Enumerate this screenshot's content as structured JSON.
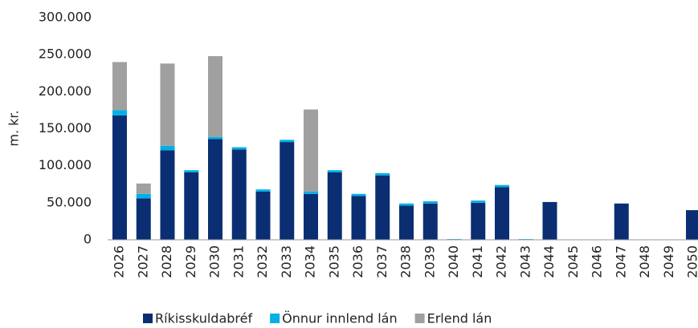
{
  "chart_data": {
    "type": "stacked_bar",
    "y_label": "m. kr.",
    "categories": [
      "2026",
      "2027",
      "2028",
      "2029",
      "2030",
      "2031",
      "2032",
      "2033",
      "2034",
      "2035",
      "2036",
      "2037",
      "2038",
      "2039",
      "2040",
      "2041",
      "2042",
      "2043",
      "2044",
      "2045",
      "2046",
      "2047",
      "2048",
      "2049",
      "2050"
    ],
    "series": [
      {
        "name": "Ríkisskuldabréf",
        "color": "#0b2e73",
        "values": [
          168000,
          56000,
          121000,
          91000,
          136000,
          122000,
          65000,
          132000,
          62000,
          91000,
          59000,
          87000,
          46000,
          49000,
          0,
          50000,
          71000,
          0,
          51000,
          0,
          0,
          49000,
          0,
          0,
          40000
        ]
      },
      {
        "name": "Önnur innlend lán",
        "color": "#00b0e6",
        "values": [
          7000,
          6000,
          6000,
          3000,
          3000,
          3000,
          3000,
          3000,
          3000,
          3000,
          3000,
          3000,
          3000,
          3000,
          1000,
          3000,
          3000,
          1000,
          0,
          0,
          0,
          0,
          0,
          0,
          0
        ]
      },
      {
        "name": "Erlend lán",
        "color": "#a0a0a0",
        "values": [
          65000,
          14000,
          111000,
          0,
          109000,
          0,
          0,
          0,
          111000,
          0,
          0,
          0,
          0,
          0,
          0,
          0,
          0,
          0,
          0,
          0,
          0,
          0,
          0,
          0,
          0
        ]
      }
    ],
    "ylim": [
      0,
      300000
    ],
    "yticks": [
      {
        "value": 0,
        "label": "0"
      },
      {
        "value": 50000,
        "label": "50.000"
      },
      {
        "value": 100000,
        "label": "100.000"
      },
      {
        "value": 150000,
        "label": "150.000"
      },
      {
        "value": 200000,
        "label": "200.000"
      },
      {
        "value": 250000,
        "label": "250.000"
      },
      {
        "value": 300000,
        "label": "300.000"
      }
    ],
    "legend": "bottom",
    "grid": false
  }
}
